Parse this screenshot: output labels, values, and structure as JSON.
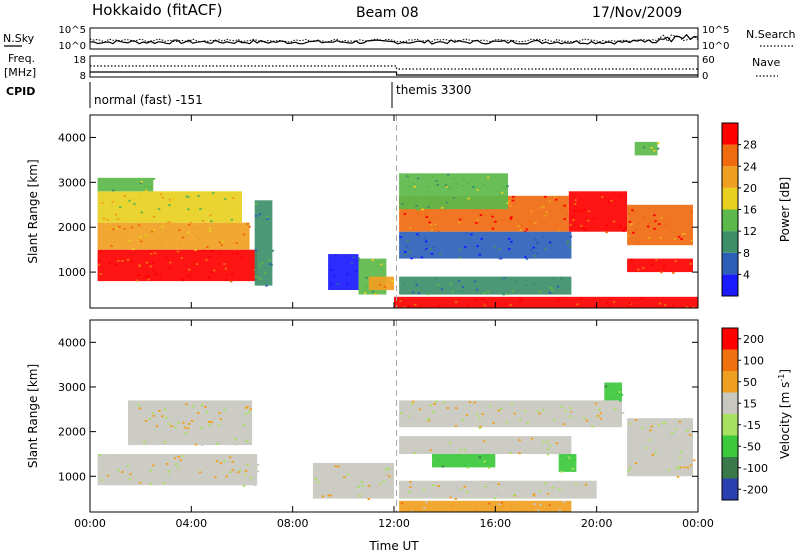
{
  "header": {
    "title": "Hokkaido (fitACF)",
    "beam": "Beam 08",
    "date": "17/Nov/2009"
  },
  "summary": {
    "nsky_label": "N.Sky",
    "nsearch_label": "N.Search",
    "freq_label_top": "Freq.",
    "freq_label_bottom": "[MHz]",
    "nave_label": "Nave",
    "cpid_label": "CPID",
    "nsky_ticks": [
      "10^5",
      "10^0"
    ],
    "nsearch_ticks": [
      "10^5",
      "10^0"
    ],
    "freq_ticks": [
      "18",
      "8"
    ],
    "nave_ticks": [
      "60",
      "0"
    ],
    "cpid_segments": [
      {
        "start_hour": 0,
        "label": "normal (fast) -151"
      },
      {
        "start_hour": 12.1,
        "label": "themis 3300"
      }
    ]
  },
  "chart_data": [
    {
      "type": "heatmap",
      "name": "power",
      "ylabel": "Slant Range [km]",
      "xlabel": "",
      "xlim": [
        0,
        24
      ],
      "ylim": [
        200,
        4500
      ],
      "x_ticks": [
        0,
        4,
        8,
        12,
        16,
        20,
        24
      ],
      "y_ticks": [
        1000,
        2000,
        3000,
        4000
      ],
      "colorbar": {
        "label": "Power [dB]",
        "ticks": [
          "4",
          "8",
          "12",
          "16",
          "20",
          "24",
          "28"
        ],
        "colors": [
          "#1a1aff",
          "#2e5fb8",
          "#3d8f6a",
          "#5cb84a",
          "#e8d020",
          "#f0a020",
          "#f06a10",
          "#ff0000"
        ]
      },
      "regions": [
        {
          "t0": 0.3,
          "t1": 6.6,
          "r0": 800,
          "r1": 1500,
          "level": 7
        },
        {
          "t0": 0.3,
          "t1": 6.3,
          "r0": 1500,
          "r1": 2100,
          "level": 5
        },
        {
          "t0": 0.3,
          "t1": 6.0,
          "r0": 2100,
          "r1": 2800,
          "level": 4
        },
        {
          "t0": 0.3,
          "t1": 2.5,
          "r0": 2800,
          "r1": 3100,
          "level": 3
        },
        {
          "t0": 6.5,
          "t1": 7.2,
          "r0": 700,
          "r1": 2600,
          "level": 2
        },
        {
          "t0": 9.4,
          "t1": 10.6,
          "r0": 600,
          "r1": 1400,
          "level": 0
        },
        {
          "t0": 10.6,
          "t1": 11.7,
          "r0": 500,
          "r1": 1300,
          "level": 3
        },
        {
          "t0": 11.0,
          "t1": 12.0,
          "r0": 600,
          "r1": 900,
          "level": 5
        },
        {
          "t0": 12.2,
          "t1": 18.9,
          "r0": 1900,
          "r1": 2700,
          "level": 6
        },
        {
          "t0": 12.2,
          "t1": 16.5,
          "r0": 2400,
          "r1": 3200,
          "level": 3
        },
        {
          "t0": 12.2,
          "t1": 19.0,
          "r0": 1300,
          "r1": 1900,
          "level": 1
        },
        {
          "t0": 12.2,
          "t1": 19.0,
          "r0": 500,
          "r1": 900,
          "level": 2
        },
        {
          "t0": 18.9,
          "t1": 21.2,
          "r0": 1900,
          "r1": 2800,
          "level": 7
        },
        {
          "t0": 21.2,
          "t1": 23.8,
          "r0": 1600,
          "r1": 2500,
          "level": 6
        },
        {
          "t0": 21.2,
          "t1": 23.8,
          "r0": 1000,
          "r1": 1300,
          "level": 7
        },
        {
          "t0": 12.0,
          "t1": 24.0,
          "r0": 200,
          "r1": 450,
          "level": 7
        },
        {
          "t0": 21.5,
          "t1": 22.4,
          "r0": 3600,
          "r1": 3900,
          "level": 3
        }
      ]
    },
    {
      "type": "heatmap",
      "name": "velocity",
      "ylabel": "Slant Range [km]",
      "xlabel": "Time UT",
      "xlim": [
        0,
        24
      ],
      "ylim": [
        200,
        4500
      ],
      "x_ticks": [
        0,
        4,
        8,
        12,
        16,
        20,
        24
      ],
      "x_tick_labels": [
        "00:00",
        "04:00",
        "08:00",
        "12:00",
        "16:00",
        "20:00",
        "00:00"
      ],
      "y_ticks": [
        1000,
        2000,
        3000,
        4000
      ],
      "colorbar": {
        "label": "Velocity [m s",
        "label_sup": "-1",
        "label_tail": "]",
        "ticks": [
          "200",
          "100",
          "50",
          "15",
          "-15",
          "-50",
          "-100",
          "-200"
        ],
        "colors": [
          "#2a3fb0",
          "#3a7a4a",
          "#3cc83c",
          "#a8e060",
          "#c8c8c0",
          "#f0a020",
          "#f07010",
          "#ff0000"
        ]
      },
      "regions": [
        {
          "t0": 0.3,
          "t1": 6.6,
          "r0": 800,
          "r1": 1500,
          "level": 4
        },
        {
          "t0": 1.5,
          "t1": 6.4,
          "r0": 1700,
          "r1": 2700,
          "level": 4
        },
        {
          "t0": 8.8,
          "t1": 12.0,
          "r0": 500,
          "r1": 1300,
          "level": 4
        },
        {
          "t0": 12.2,
          "t1": 21.0,
          "r0": 2100,
          "r1": 2700,
          "level": 4
        },
        {
          "t0": 12.2,
          "t1": 19.0,
          "r0": 1500,
          "r1": 1900,
          "level": 4
        },
        {
          "t0": 13.5,
          "t1": 16.0,
          "r0": 1200,
          "r1": 1500,
          "level": 2
        },
        {
          "t0": 12.2,
          "t1": 20.0,
          "r0": 500,
          "r1": 900,
          "level": 4
        },
        {
          "t0": 12.2,
          "t1": 19.0,
          "r0": 200,
          "r1": 450,
          "level": 5
        },
        {
          "t0": 21.2,
          "t1": 23.8,
          "r0": 1000,
          "r1": 2300,
          "level": 4
        },
        {
          "t0": 20.3,
          "t1": 21.0,
          "r0": 2700,
          "r1": 3100,
          "level": 2
        },
        {
          "t0": 18.5,
          "t1": 19.2,
          "r0": 1100,
          "r1": 1500,
          "level": 2
        }
      ]
    }
  ]
}
